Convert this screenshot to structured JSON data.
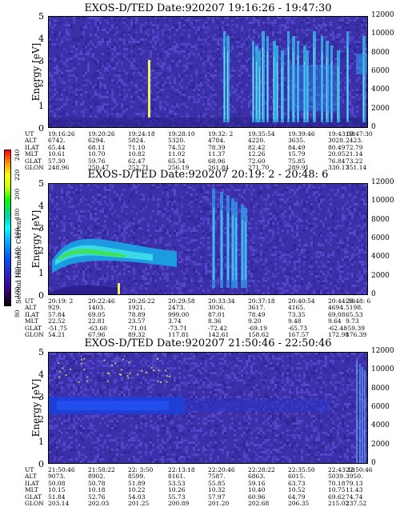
{
  "colorbar": {
    "label": "Second Harmonic Current",
    "ticks": [
      "240",
      "220",
      "200",
      "180",
      "160",
      "140",
      "120",
      "100",
      "80"
    ]
  },
  "panels": [
    {
      "title": "EXOS-D/TED   Date:920207  19:16:26 - 19:47:30",
      "ylabel_left": "Energy [eV]",
      "ylabel_right": "Temperature [K]",
      "yticks_left": [
        "5",
        "4",
        "3",
        "2",
        "1",
        "0"
      ],
      "yticks_right": [
        "12000",
        "10000",
        "8000",
        "6000",
        "4000",
        "2000",
        "0"
      ],
      "ephem_labels": [
        "UT",
        "ALT",
        "ILAT",
        "MLT",
        "GLAT",
        "GLON"
      ],
      "ephem_cols": [
        [
          "19:16:26",
          "6742.",
          "65.44",
          "10.61",
          "57.30",
          "248.96"
        ],
        [
          "19:20:26",
          "6294.",
          "68.11",
          "10.70",
          "59.76",
          "250.47"
        ],
        [
          "19:24:18",
          "5824.",
          "71.10",
          "10.82",
          "62.47",
          "252.71"
        ],
        [
          "19:28:10",
          "5320.",
          "74.52",
          "11.02",
          "65.54",
          "256.19"
        ],
        [
          "19:32: 2",
          "4784.",
          "78.39",
          "11.37",
          "68.96",
          "261.84"
        ],
        [
          "19:35:54",
          "4220.",
          "82.42",
          "12.26",
          "72.60",
          "271.70"
        ],
        [
          "19:39:46",
          "3635.",
          "84.49",
          "15.79",
          "75.85",
          "289.91"
        ],
        [
          "19:43:38",
          "3028.",
          "80.49",
          "20.05",
          "76.84",
          "330.17"
        ],
        [
          "19:47:30",
          "2423.",
          "72.79",
          "21.14",
          "73.22",
          "351.14"
        ]
      ]
    },
    {
      "title": "EXOS-D/TED   Date:920207  20:19: 2 - 20:48: 6",
      "ylabel_left": "Energy [eV]",
      "ylabel_right": "Temperature [K]",
      "yticks_left": [
        "5",
        "4",
        "3",
        "2",
        "1",
        "0"
      ],
      "yticks_right": [
        "12000",
        "10000",
        "8000",
        "6000",
        "4000",
        "2000",
        "0"
      ],
      "ephem_labels": [
        "UT",
        "ALT",
        "ILAT",
        "MLT",
        "GLAT",
        "GLON"
      ],
      "ephem_cols": [
        [
          "20:19: 2",
          "929.",
          "57.84",
          "22.52",
          "-51.75",
          "54.21"
        ],
        [
          "20:22:46",
          "1403.",
          "69.05",
          "22.81",
          "-63.60",
          "67.96"
        ],
        [
          "20:26:22",
          "1921.",
          "78.89",
          "23.57",
          "-71.01",
          "89.32"
        ],
        [
          "20:29:58",
          "2473.",
          "999.00",
          "3.74",
          "-73.71",
          "117.81"
        ],
        [
          "20:33:34",
          "3036.",
          "87.01",
          "8.36",
          "-72.42",
          "142.61"
        ],
        [
          "20:37:18",
          "3617.",
          "78.49",
          "9.20",
          "-69.19",
          "158.62"
        ],
        [
          "20:40:54",
          "4165.",
          "73.35",
          "9.48",
          "-65.73",
          "167.57"
        ],
        [
          "20:44:30",
          "4694.",
          "69.08",
          "9.64",
          "-62.48",
          "172.98"
        ],
        [
          "20:48: 6",
          "5198.",
          "65.53",
          "9.73",
          "-59.39",
          "176.39"
        ]
      ]
    },
    {
      "title": "EXOS-D/TED   Date:920207  21:50:46 - 22:50:46",
      "ylabel_left": "Energy [eV]",
      "ylabel_right": "Temperature [K]",
      "yticks_left": [
        "5",
        "4",
        "3",
        "2",
        "1",
        "0"
      ],
      "yticks_right": [
        "12000",
        "10000",
        "8000",
        "6000",
        "4000",
        "2000",
        "0"
      ],
      "ephem_labels": [
        "UT",
        "ALT",
        "ILAT",
        "MLT",
        "GLAT",
        "GLON"
      ],
      "ephem_cols": [
        [
          "21:50:46",
          "9073.",
          "50.08",
          "10.15",
          "51.84",
          "203.14"
        ],
        [
          "21:58:22",
          "8902.",
          "50.78",
          "10.18",
          "52.76",
          "202.03"
        ],
        [
          "22: 3:50",
          "8599.",
          "51.89",
          "10.22",
          "54.03",
          "201.25"
        ],
        [
          "22:13:18",
          "8161.",
          "53.53",
          "10.26",
          "55.73",
          "200.89"
        ],
        [
          "22:20:46",
          "7587.",
          "55.85",
          "10.32",
          "57.97",
          "201.20"
        ],
        [
          "22:28:22",
          "6863.",
          "59.16",
          "10.40",
          "60.96",
          "202.68"
        ],
        [
          "22:35:50",
          "6015.",
          "63.73",
          "10.52",
          "64.79",
          "206.35"
        ],
        [
          "22:43:18",
          "5039.",
          "70.18",
          "10.75",
          "69.62",
          "215.02"
        ],
        [
          "22:50:46",
          "3950.",
          "79.13",
          "11.43",
          "74.74",
          "237.52"
        ]
      ]
    }
  ],
  "chart_data": [
    {
      "type": "heatmap",
      "title": "EXOS-D/TED   Date:920207  19:16:26 - 19:47:30",
      "ylabel": "Energy [eV]",
      "y2label": "Temperature [K]",
      "ylim": [
        0,
        5
      ],
      "y2lim": [
        0,
        12000
      ],
      "x_ticks": [
        "19:16:26",
        "19:20:26",
        "19:24:18",
        "19:28:10",
        "19:32: 2",
        "19:35:54",
        "19:39:46",
        "19:43:38",
        "19:47:30"
      ],
      "colorbar": {
        "label": "Second Harmonic Current",
        "range": [
          80,
          240
        ]
      }
    },
    {
      "type": "heatmap",
      "title": "EXOS-D/TED   Date:920207  20:19: 2 - 20:48: 6",
      "ylabel": "Energy [eV]",
      "y2label": "Temperature [K]",
      "ylim": [
        0,
        5
      ],
      "y2lim": [
        0,
        12000
      ],
      "x_ticks": [
        "20:19: 2",
        "20:22:46",
        "20:26:22",
        "20:29:58",
        "20:33:34",
        "20:37:18",
        "20:40:54",
        "20:44:30",
        "20:48: 6"
      ],
      "colorbar": {
        "label": "Second Harmonic Current",
        "range": [
          80,
          240
        ]
      }
    },
    {
      "type": "heatmap",
      "title": "EXOS-D/TED   Date:920207  21:50:46 - 22:50:46",
      "ylabel": "Energy [eV]",
      "y2label": "Temperature [K]",
      "ylim": [
        0,
        5
      ],
      "y2lim": [
        0,
        12000
      ],
      "x_ticks": [
        "21:50:46",
        "21:58:22",
        "22: 3:50",
        "22:13:18",
        "22:20:46",
        "22:28:22",
        "22:35:50",
        "22:43:18",
        "22:50:46"
      ],
      "colorbar": {
        "label": "Second Harmonic Current",
        "range": [
          80,
          240
        ]
      }
    }
  ]
}
